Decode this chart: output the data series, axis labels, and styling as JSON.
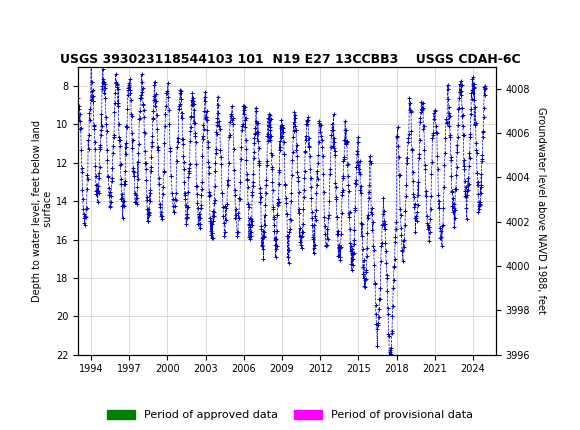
{
  "title": "USGS 393023118544103 101  N19 E27 13CCBB3    USGS CDAH-6C",
  "ylabel_left": "Depth to water level, feet below land\n surface",
  "ylabel_right": "Groundwater level above NAVD 1988, feet",
  "ylim_left": [
    22,
    7
  ],
  "ylim_right": [
    3996,
    4009
  ],
  "xlim_left": 1993.0,
  "xlim_right": 2025.8,
  "xticks": [
    1994,
    1997,
    2000,
    2003,
    2006,
    2009,
    2012,
    2015,
    2018,
    2021,
    2024
  ],
  "yticks_left": [
    8,
    10,
    12,
    14,
    16,
    18,
    20,
    22
  ],
  "yticks_right": [
    3996,
    3998,
    4000,
    4002,
    4004,
    4006,
    4008
  ],
  "header_color": "#006b3c",
  "plot_color": "#0000cc",
  "approved_color": "#008000",
  "provisional_color": "#ff00ff",
  "background_color": "#ffffff",
  "grid_color": "#cccccc",
  "title_fontsize": 9,
  "tick_fontsize": 7,
  "ylabel_fontsize": 7,
  "legend_fontsize": 8
}
